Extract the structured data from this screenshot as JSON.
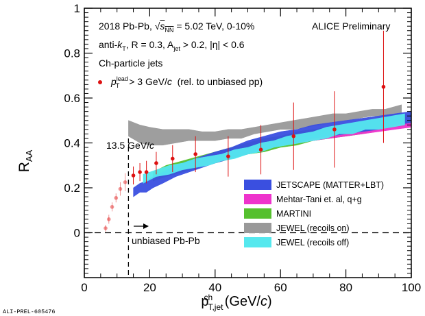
{
  "annotations": {
    "system_prefix": "2018 Pb-Pb,",
    "sqrt_symbol": "√",
    "sqrt_s": "s",
    "sqrt_sub": "NN",
    "energy": "= 5.02 TeV, 0-10%",
    "preliminary": "ALICE Preliminary",
    "algo_prefix": "anti-",
    "kt_k": "k",
    "kt_sub": "T",
    "radius": ", R = 0.3, A",
    "area_sub": "jet",
    "area_rest": " > 0.2, |η| < 0.6",
    "jets": "Ch-particle jets",
    "data_p": "p",
    "data_sup": "lead",
    "data_sub": "T",
    "data_rest": " > 3 GeV/",
    "data_c": "c",
    "data_note": "(rel. to unbiased pp)",
    "threshold": "13.5 GeV/",
    "threshold_c": "c",
    "unbiased": "unbiased Pb-Pb",
    "footer": "ALI-PREL-605476"
  },
  "colors": {
    "jetscape": "#3a4fe0",
    "mehtar_tani": "#ee33cc",
    "martini": "#55c02e",
    "jewel_on": "#999999",
    "jewel_off": "#55e8ee",
    "data": "#dd1111"
  },
  "chart_data": {
    "type": "line",
    "title": "",
    "xlabel": "p_T,jet^ch (GeV/c)",
    "ylabel": "R_AA",
    "xlim": [
      0,
      100
    ],
    "ylim": [
      -0.2,
      1.0
    ],
    "x_ticks": [
      "0",
      "20",
      "40",
      "60",
      "80",
      "100"
    ],
    "y_ticks": [
      "0",
      "0.2",
      "0.4",
      "0.6",
      "0.8",
      "1"
    ],
    "threshold_x": 13.5,
    "legend": {
      "placement": "lower-right",
      "entries": [
        {
          "label": "JETSCAPE (MATTER+LBT)",
          "key": "jetscape"
        },
        {
          "label": "Mehtar-Tani et. al, q+g",
          "key": "mehtar_tani"
        },
        {
          "label": "MARTINI",
          "key": "martini"
        },
        {
          "label": "JEWEL (recoils on)",
          "key": "jewel_on"
        },
        {
          "label": "JEWEL (recoils off)",
          "key": "jewel_off"
        }
      ]
    },
    "data_points": [
      {
        "x": 6.5,
        "y": 0.02,
        "err": 0.015,
        "faded": true
      },
      {
        "x": 7.5,
        "y": 0.06,
        "err": 0.02,
        "faded": true
      },
      {
        "x": 8.5,
        "y": 0.115,
        "err": 0.02,
        "faded": true
      },
      {
        "x": 9.7,
        "y": 0.155,
        "err": 0.02,
        "faded": true
      },
      {
        "x": 11.0,
        "y": 0.195,
        "err": 0.03,
        "faded": true
      },
      {
        "x": 12.5,
        "y": 0.225,
        "err": 0.04,
        "faded": true
      },
      {
        "x": 15.0,
        "y": 0.255,
        "err": 0.04,
        "faded": false
      },
      {
        "x": 17.0,
        "y": 0.27,
        "err": 0.04,
        "faded": false
      },
      {
        "x": 19.0,
        "y": 0.27,
        "err": 0.05,
        "faded": false
      },
      {
        "x": 22.0,
        "y": 0.31,
        "err": 0.05,
        "faded": false
      },
      {
        "x": 27.0,
        "y": 0.33,
        "err": 0.06,
        "faded": false
      },
      {
        "x": 34.0,
        "y": 0.35,
        "err": 0.08,
        "faded": false
      },
      {
        "x": 44.0,
        "y": 0.34,
        "err": 0.09,
        "faded": false
      },
      {
        "x": 54.0,
        "y": 0.37,
        "err": 0.11,
        "faded": false
      },
      {
        "x": 64.0,
        "y": 0.43,
        "err": 0.15,
        "faded": false
      },
      {
        "x": 76.5,
        "y": 0.46,
        "err": 0.17,
        "faded": false
      },
      {
        "x": 91.5,
        "y": 0.65,
        "err": 0.25,
        "faded": false
      }
    ],
    "bands": [
      {
        "key": "jewel_on",
        "x": [
          13.5,
          17,
          20,
          24,
          28,
          32,
          36,
          40,
          44,
          48,
          52,
          56,
          60,
          64,
          68,
          72,
          76,
          80,
          84,
          88,
          92,
          97
        ],
        "lo": [
          0.43,
          0.4,
          0.39,
          0.39,
          0.4,
          0.41,
          0.41,
          0.41,
          0.42,
          0.42,
          0.44,
          0.45,
          0.46,
          0.46,
          0.47,
          0.48,
          0.49,
          0.5,
          0.51,
          0.52,
          0.52,
          0.53
        ],
        "hi": [
          0.5,
          0.48,
          0.47,
          0.46,
          0.46,
          0.46,
          0.45,
          0.45,
          0.46,
          0.46,
          0.47,
          0.48,
          0.49,
          0.5,
          0.51,
          0.52,
          0.53,
          0.53,
          0.54,
          0.55,
          0.55,
          0.57
        ]
      },
      {
        "key": "martini",
        "x": [
          21,
          25,
          30,
          35,
          40,
          45,
          50,
          55,
          60,
          65,
          70,
          75,
          80,
          85,
          90,
          95,
          100
        ],
        "lo": [
          0.23,
          0.25,
          0.27,
          0.29,
          0.31,
          0.33,
          0.35,
          0.36,
          0.38,
          0.39,
          0.41,
          0.42,
          0.43,
          0.44,
          0.46,
          0.47,
          0.48
        ],
        "hi": [
          0.27,
          0.3,
          0.32,
          0.34,
          0.36,
          0.38,
          0.4,
          0.42,
          0.43,
          0.45,
          0.46,
          0.47,
          0.48,
          0.49,
          0.5,
          0.51,
          0.53
        ]
      },
      {
        "key": "mehtar_tani",
        "x": [
          40,
          45,
          50,
          55,
          60,
          65,
          70,
          75,
          80,
          85,
          90,
          95,
          100
        ],
        "lo": [
          0.33,
          0.345,
          0.36,
          0.375,
          0.39,
          0.4,
          0.41,
          0.42,
          0.43,
          0.44,
          0.45,
          0.46,
          0.47
        ],
        "hi": [
          0.35,
          0.365,
          0.38,
          0.395,
          0.41,
          0.42,
          0.43,
          0.44,
          0.45,
          0.46,
          0.47,
          0.48,
          0.49
        ]
      },
      {
        "key": "jetscape",
        "x": [
          15,
          17,
          19,
          21,
          24,
          28,
          32,
          36,
          40,
          45,
          50,
          55,
          60,
          65,
          70,
          75,
          80,
          85,
          90,
          95,
          100
        ],
        "lo": [
          0.16,
          0.18,
          0.18,
          0.2,
          0.22,
          0.25,
          0.27,
          0.29,
          0.31,
          0.33,
          0.35,
          0.37,
          0.39,
          0.4,
          0.42,
          0.43,
          0.44,
          0.45,
          0.46,
          0.48,
          0.49
        ],
        "hi": [
          0.2,
          0.22,
          0.23,
          0.25,
          0.27,
          0.3,
          0.32,
          0.34,
          0.36,
          0.38,
          0.41,
          0.43,
          0.45,
          0.46,
          0.48,
          0.49,
          0.5,
          0.51,
          0.52,
          0.53,
          0.54
        ]
      },
      {
        "key": "jewel_off",
        "x": [
          18,
          22,
          26,
          30,
          34,
          38,
          42,
          46,
          50,
          54,
          58,
          62,
          66,
          70,
          74,
          78,
          82,
          86,
          90,
          94,
          98
        ],
        "lo": [
          0.22,
          0.25,
          0.26,
          0.28,
          0.29,
          0.3,
          0.32,
          0.33,
          0.35,
          0.36,
          0.38,
          0.39,
          0.4,
          0.41,
          0.42,
          0.44,
          0.44,
          0.46,
          0.46,
          0.47,
          0.48
        ],
        "hi": [
          0.26,
          0.28,
          0.3,
          0.31,
          0.33,
          0.34,
          0.35,
          0.37,
          0.38,
          0.4,
          0.41,
          0.43,
          0.44,
          0.45,
          0.47,
          0.48,
          0.49,
          0.5,
          0.51,
          0.52,
          0.53
        ]
      }
    ]
  }
}
